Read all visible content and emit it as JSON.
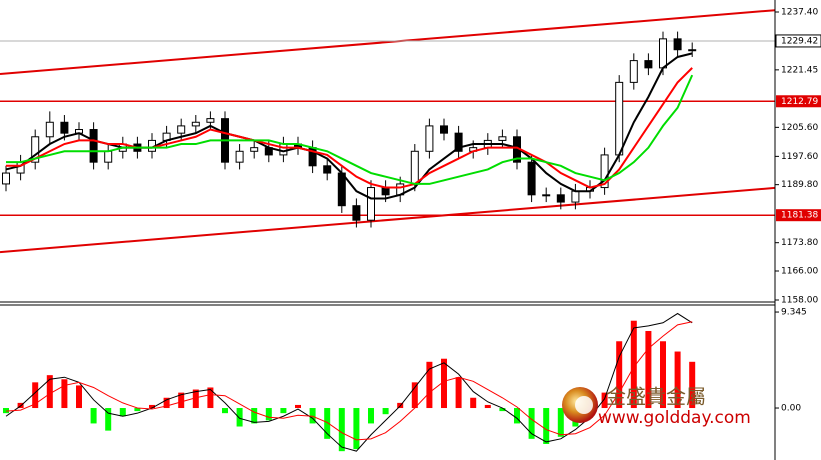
{
  "chart_data": [
    {
      "type": "candlestick",
      "open": [
        1190,
        1193,
        1196,
        1203,
        1207,
        1204,
        1205,
        1196,
        1199,
        1201,
        1199,
        1202,
        1204,
        1206,
        1207,
        1208,
        1196,
        1199,
        1200,
        1198,
        1201,
        1200,
        1195,
        1193,
        1184,
        1180,
        1189,
        1187,
        1190,
        1199,
        1206,
        1204,
        1199,
        1200,
        1202,
        1203,
        1196,
        1187,
        1187,
        1185,
        1188,
        1189,
        1198,
        1218,
        1224,
        1222,
        1230,
        1227
      ],
      "high": [
        1195,
        1198,
        1205,
        1210,
        1209,
        1207,
        1207,
        1201,
        1203,
        1203,
        1204,
        1206,
        1208,
        1209,
        1210,
        1210,
        1201,
        1202,
        1202,
        1203,
        1203,
        1202,
        1197,
        1195,
        1186,
        1191,
        1191,
        1192,
        1201,
        1208,
        1208,
        1206,
        1202,
        1204,
        1205,
        1205,
        1198,
        1189,
        1189,
        1190,
        1191,
        1200,
        1220,
        1226,
        1226,
        1232,
        1232,
        1229
      ],
      "low": [
        1188,
        1191,
        1194,
        1201,
        1202,
        1202,
        1194,
        1194,
        1197,
        1197,
        1197,
        1200,
        1202,
        1204,
        1205,
        1194,
        1194,
        1197,
        1196,
        1196,
        1198,
        1193,
        1191,
        1182,
        1178,
        1178,
        1185,
        1185,
        1188,
        1197,
        1202,
        1197,
        1197,
        1198,
        1200,
        1194,
        1185,
        1185,
        1183,
        1183,
        1186,
        1187,
        1196,
        1216,
        1220,
        1220,
        1225,
        1225
      ],
      "close": [
        1193,
        1196,
        1203,
        1207,
        1204,
        1205,
        1196,
        1199,
        1201,
        1199,
        1202,
        1204,
        1206,
        1207,
        1208,
        1196,
        1199,
        1200,
        1198,
        1201,
        1200,
        1195,
        1193,
        1184,
        1180,
        1189,
        1187,
        1190,
        1199,
        1206,
        1204,
        1199,
        1200,
        1202,
        1203,
        1196,
        1187,
        1187,
        1185,
        1188,
        1189,
        1198,
        1218,
        1224,
        1222,
        1230,
        1227,
        1227
      ],
      "lines": [
        {
          "color": "#000000",
          "values": [
            1194,
            1195,
            1198,
            1201,
            1203,
            1204,
            1202,
            1201,
            1200,
            1200,
            1200,
            1202,
            1203,
            1204,
            1206,
            1204,
            1203,
            1202,
            1200,
            1199,
            1200,
            1199,
            1197,
            1193,
            1188,
            1186,
            1186,
            1187,
            1189,
            1194,
            1197,
            1200,
            1201,
            1201,
            1201,
            1200,
            1197,
            1193,
            1190,
            1188,
            1188,
            1191,
            1198,
            1207,
            1214,
            1222,
            1225,
            1226
          ]
        },
        {
          "color": "#ff0000",
          "values": [
            1195,
            1195,
            1197,
            1199,
            1201,
            1202,
            1202,
            1201,
            1201,
            1200,
            1200,
            1201,
            1202,
            1203,
            1205,
            1204,
            1203,
            1202,
            1201,
            1200,
            1200,
            1199,
            1198,
            1195,
            1192,
            1190,
            1189,
            1189,
            1190,
            1193,
            1195,
            1197,
            1199,
            1200,
            1200,
            1200,
            1198,
            1196,
            1193,
            1191,
            1189,
            1190,
            1194,
            1200,
            1206,
            1212,
            1218,
            1222
          ]
        },
        {
          "color": "#00dd00",
          "values": [
            1196,
            1196,
            1197,
            1198,
            1199,
            1199,
            1199,
            1199,
            1200,
            1200,
            1200,
            1200,
            1201,
            1201,
            1202,
            1202,
            1202,
            1202,
            1202,
            1201,
            1201,
            1200,
            1199,
            1197,
            1195,
            1193,
            1192,
            1191,
            1190,
            1190,
            1191,
            1192,
            1193,
            1194,
            1196,
            1197,
            1197,
            1196,
            1195,
            1193,
            1192,
            1191,
            1193,
            1196,
            1200,
            1206,
            1211,
            1220
          ]
        }
      ],
      "channels": [
        {
          "start": 1220.3,
          "end": 1237.9
        },
        {
          "start": 1171.2,
          "end": 1188.9
        }
      ],
      "levels": [
        1212.79,
        1181.38
      ],
      "current_price": 1229.42,
      "ylim": [
        1157.45,
        1240.71
      ],
      "yticks": [
        {
          "value": 1237.4,
          "label": "1237.40"
        },
        1221.45,
        {
          "value": 1205.6,
          "label": "1205.60"
        },
        {
          "value": 1197.6,
          "label": "1197.60"
        },
        {
          "value": 1189.8,
          "label": "1189.80"
        },
        {
          "value": 1173.8,
          "label": "1173.80"
        },
        {
          "value": 1166,
          "label": "1166.00"
        },
        {
          "value": 1158,
          "label": "1158.00"
        }
      ]
    },
    {
      "type": "macd",
      "values": [
        -0.5,
        0.5,
        2.5,
        3.2,
        2.8,
        2.2,
        -1.5,
        -2.2,
        -0.8,
        -0.3,
        0.3,
        1.0,
        1.5,
        1.8,
        2.0,
        -0.5,
        -1.8,
        -1.5,
        -1.2,
        -0.5,
        0.3,
        -1.5,
        -3.0,
        -4.2,
        -4.0,
        -1.5,
        -0.6,
        0.5,
        2.5,
        4.5,
        4.8,
        3.0,
        1.0,
        0.3,
        -0.3,
        -1.5,
        -3.0,
        -3.5,
        -2.8,
        -1.8,
        -0.5,
        1.5,
        6.5,
        8.5,
        7.5,
        6.5,
        5.5,
        4.5
      ],
      "pos_color": "#ff0000",
      "neg_color": "#00ff00",
      "series": [
        {
          "color": "#000000",
          "values": [
            -0.8,
            0.2,
            1.5,
            2.8,
            3.0,
            2.5,
            0.8,
            -0.5,
            -0.8,
            -0.5,
            0,
            0.8,
            1.3,
            1.6,
            1.8,
            0.5,
            -1.0,
            -1.4,
            -1.3,
            -0.8,
            -0.1,
            -1.0,
            -2.5,
            -3.8,
            -4.2,
            -2.6,
            -1.2,
            0.2,
            2.0,
            3.8,
            4.4,
            3.3,
            1.6,
            0.6,
            0,
            -1.0,
            -2.5,
            -3.3,
            -3.0,
            -2.1,
            -0.9,
            0.9,
            5.0,
            7.8,
            8.0,
            8.3,
            9.2,
            8.3
          ]
        },
        {
          "color": "#ff0000",
          "values": [
            -0.3,
            -0.2,
            0.4,
            1.4,
            2.2,
            2.5,
            2.0,
            1.2,
            0.5,
            0,
            -0.1,
            0.2,
            0.6,
            1.0,
            1.3,
            1.2,
            0.4,
            -0.4,
            -0.9,
            -1.0,
            -0.7,
            -0.8,
            -1.4,
            -2.4,
            -3.1,
            -3.0,
            -2.4,
            -1.3,
            0,
            1.5,
            2.6,
            3.0,
            2.6,
            1.8,
            1.0,
            0.1,
            -1.1,
            -2.1,
            -2.6,
            -2.5,
            -1.9,
            -0.7,
            1.5,
            4.0,
            5.8,
            7.0,
            8.1,
            8.4
          ]
        }
      ],
      "ylim": [
        -5.06,
        10.03
      ],
      "yticks": [
        9.345,
        {
          "value": 0,
          "label": "0.00"
        }
      ]
    }
  ],
  "watermark": {
    "brand": "金盛貴金屬",
    "url": "www.goldday.com"
  }
}
